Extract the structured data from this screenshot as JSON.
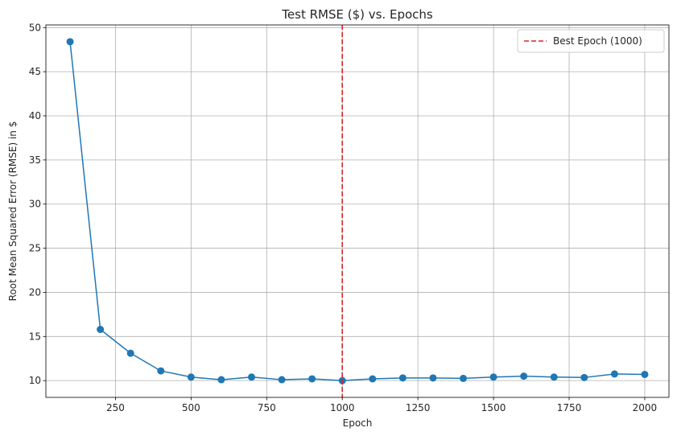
{
  "chart_data": {
    "type": "line",
    "title": "Test RMSE ($) vs. Epochs",
    "xlabel": "Epoch",
    "ylabel": "Root Mean Squared Error (RMSE) in $",
    "xlim": [
      20,
      2080
    ],
    "ylim": [
      8.1,
      50.3
    ],
    "xticks": [
      250,
      500,
      750,
      1000,
      1250,
      1500,
      1750,
      2000
    ],
    "yticks": [
      10,
      15,
      20,
      25,
      30,
      35,
      40,
      45,
      50
    ],
    "grid": true,
    "legend_position": "top-right",
    "series": [
      {
        "color": "#1f77b4",
        "marker": "circle",
        "x": [
          100,
          200,
          300,
          400,
          500,
          600,
          700,
          800,
          900,
          1000,
          1100,
          1200,
          1300,
          1400,
          1500,
          1600,
          1700,
          1800,
          1900,
          2000
        ],
        "y": [
          48.4,
          15.8,
          13.1,
          11.1,
          10.4,
          10.1,
          10.4,
          10.1,
          10.2,
          10.0,
          10.2,
          10.3,
          10.3,
          10.25,
          10.4,
          10.5,
          10.4,
          10.35,
          10.75,
          10.7
        ]
      }
    ],
    "vlines": [
      {
        "x": 1000,
        "color": "#d62728",
        "style": "dashed",
        "label": "Best Epoch (1000)"
      }
    ]
  }
}
